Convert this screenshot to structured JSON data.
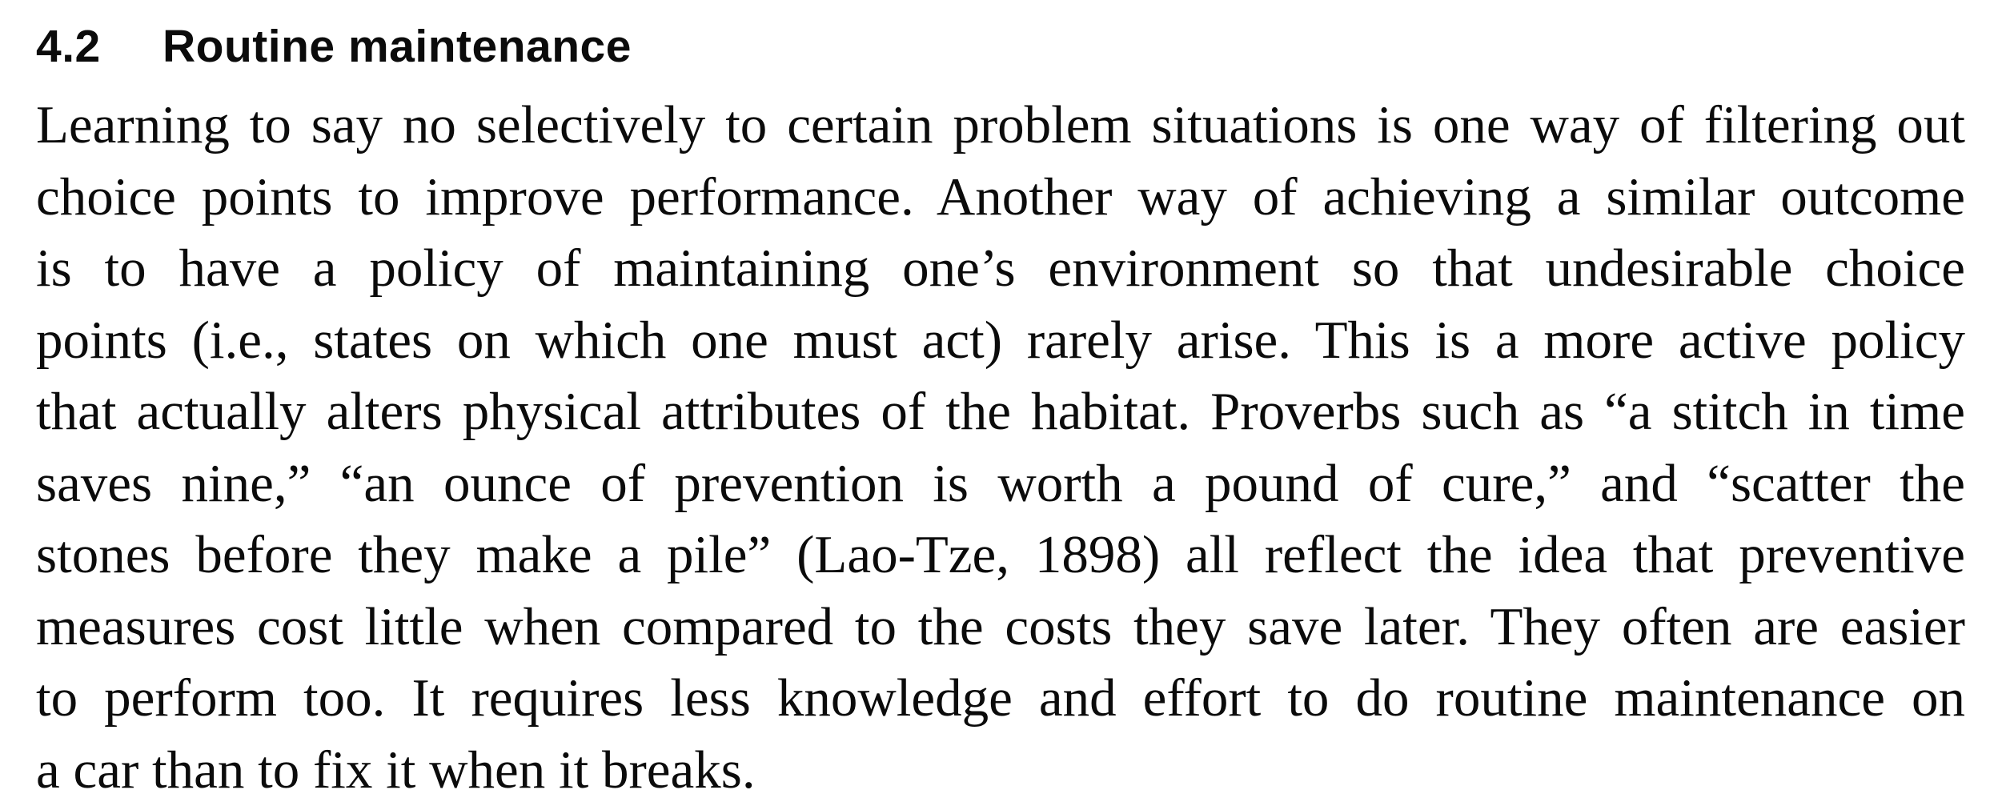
{
  "section": {
    "number": "4.2",
    "title": "Routine maintenance"
  },
  "paragraph": {
    "lines": [
      "Learning to say no selectively to certain problem situations is one way of filtering out",
      "choice points to improve performance.  Another way of achieving a similar outcome",
      "is to have a policy of maintaining one’s environment so that undesirable choice",
      "points (i.e., states on which one must act) rarely arise.  This is a more active policy",
      "that actually alters physical attributes of the habitat.  Proverbs such as “a stitch in time",
      "saves nine,” “an ounce of prevention is worth a pound of cure,” and “scatter the",
      "stones before they make a pile” (Lao-Tze, 1898) all reflect the idea that preventive",
      "measures cost little when compared to the costs they save later.  They often are easier",
      "to perform too.  It requires less knowledge and effort to do routine maintenance on",
      "a car than to fix it when it breaks."
    ]
  }
}
